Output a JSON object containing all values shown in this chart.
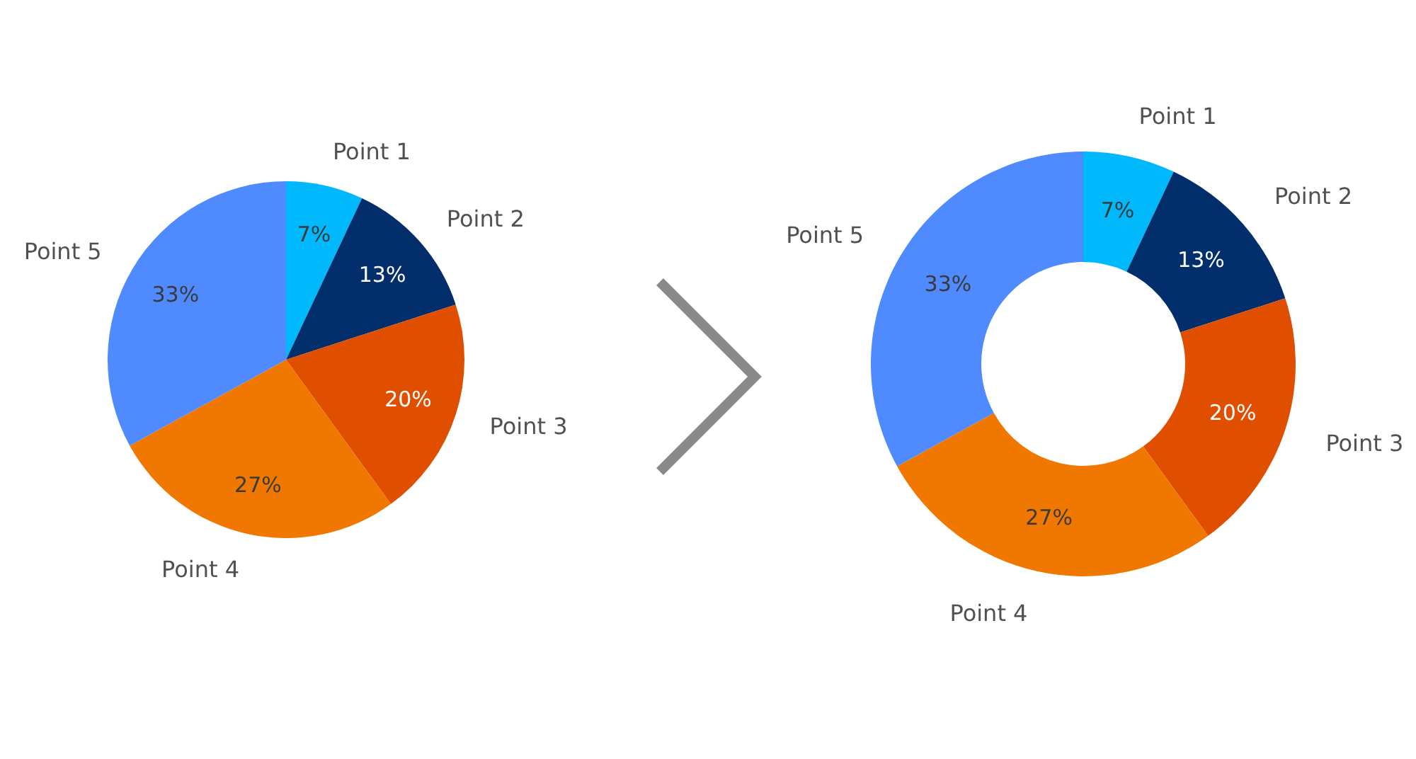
{
  "chart_data": [
    {
      "type": "pie",
      "categories": [
        "Point 1",
        "Point 2",
        "Point 3",
        "Point 4",
        "Point 5"
      ],
      "values": [
        7,
        13,
        20,
        27,
        33
      ],
      "colors": [
        "#00b8fc",
        "#022f6c",
        "#e04f00",
        "#f07800",
        "#4f8bff"
      ],
      "value_labels": [
        "7%",
        "13%",
        "20%",
        "27%",
        "33%"
      ]
    },
    {
      "type": "donut",
      "categories": [
        "Point 1",
        "Point 2",
        "Point 3",
        "Point 4",
        "Point 5"
      ],
      "values": [
        7,
        13,
        20,
        27,
        33
      ],
      "colors": [
        "#00b8fc",
        "#022f6c",
        "#e04f00",
        "#f07800",
        "#4f8bff"
      ],
      "value_labels": [
        "7%",
        "13%",
        "20%",
        "27%",
        "33%"
      ]
    }
  ]
}
